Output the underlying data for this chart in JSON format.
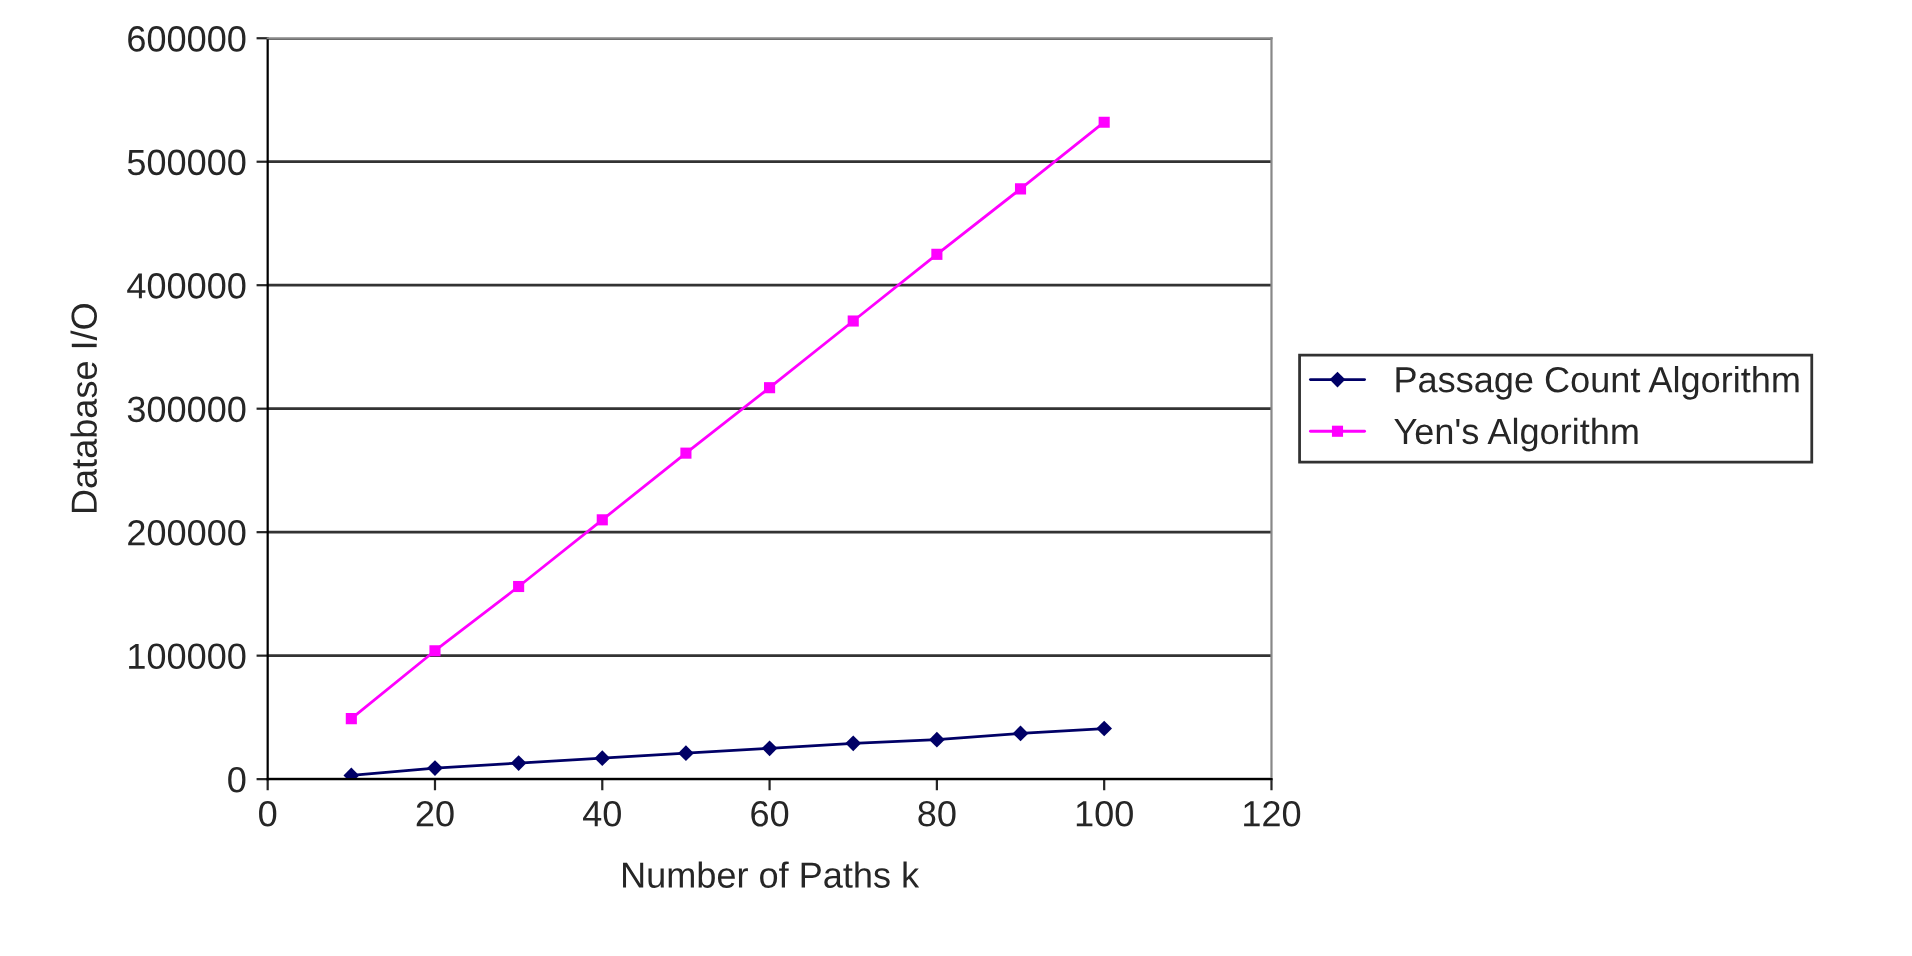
{
  "chart_data": {
    "type": "line",
    "xlabel": "Number of Paths k",
    "ylabel": "Database I/O",
    "x": [
      10,
      20,
      30,
      40,
      50,
      60,
      70,
      80,
      90,
      100
    ],
    "series": [
      {
        "name": "Passage Count Algorithm",
        "color": "#000066",
        "marker": "diamond",
        "values": [
          3000,
          9000,
          13000,
          17000,
          21000,
          25000,
          29000,
          32000,
          37000,
          41000
        ]
      },
      {
        "name": "Yen's Algorithm",
        "color": "#ff00ff",
        "marker": "square",
        "values": [
          49000,
          104000,
          156000,
          210000,
          264000,
          317000,
          371000,
          425000,
          478000,
          532000
        ]
      }
    ],
    "xlim": [
      0,
      120
    ],
    "xticks": [
      0,
      20,
      40,
      60,
      80,
      100,
      120
    ],
    "ylim": [
      0,
      600000
    ],
    "yticks": [
      0,
      100000,
      200000,
      300000,
      400000,
      500000,
      600000
    ],
    "grid": "y",
    "legend": "right",
    "line_style": "solid"
  }
}
